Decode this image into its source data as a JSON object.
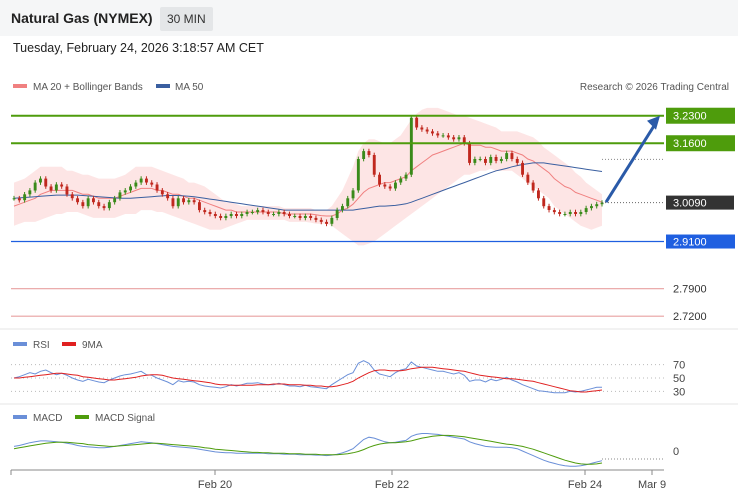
{
  "header": {
    "title": "Natural Gas (NYMEX)",
    "timeframe": "30 MIN"
  },
  "timestamp": "Tuesday, February 24, 2026 3:18:57 AM CET",
  "colors": {
    "resistance": "#4e9c0c",
    "support": "#1f5fe0",
    "current": "#333333",
    "target": "#e8a0a0",
    "ma20": "#f08080",
    "bollinger_fill": "#fde2e2",
    "ma50": "#3a5fa0",
    "candle_up": "#3a8a1a",
    "candle_down": "#c0281e",
    "rsi": "#6a8fd8",
    "rsi_ma": "#e02020",
    "macd": "#6a8fd8",
    "macd_signal": "#4e9c0c",
    "arrow": "#2a5aa8"
  },
  "chart_data": [
    {
      "type": "line",
      "name": "price",
      "legend": [
        "MA 20 + Bollinger Bands",
        "MA 50"
      ],
      "watermark": "Research © 2026 Trading Central",
      "x_ticks": [
        "Feb 20",
        "Feb 22",
        "Feb 24",
        "Mar 9"
      ],
      "ylim": [
        2.69,
        3.27
      ],
      "levels": [
        {
          "label": "3.2300",
          "value": 3.23,
          "kind": "resistance"
        },
        {
          "label": "3.1600",
          "value": 3.16,
          "kind": "resistance"
        },
        {
          "label": "3.0090",
          "value": 3.009,
          "kind": "current"
        },
        {
          "label": "2.9100",
          "value": 2.91,
          "kind": "support"
        },
        {
          "label": "2.7900",
          "value": 2.79,
          "kind": "target"
        },
        {
          "label": "2.7200",
          "value": 2.72,
          "kind": "target"
        }
      ],
      "close": [
        3.02,
        3.015,
        3.03,
        3.04,
        3.06,
        3.07,
        3.05,
        3.04,
        3.055,
        3.05,
        3.03,
        3.02,
        3.01,
        3.0,
        3.02,
        3.01,
        3.0,
        2.995,
        3.01,
        3.02,
        3.035,
        3.04,
        3.05,
        3.06,
        3.07,
        3.06,
        3.055,
        3.04,
        3.03,
        3.02,
        3.0,
        3.02,
        3.01,
        3.015,
        3.01,
        2.99,
        2.985,
        2.98,
        2.975,
        2.97,
        2.975,
        2.98,
        2.975,
        2.98,
        2.985,
        2.985,
        2.99,
        2.985,
        2.98,
        2.98,
        2.985,
        2.98,
        2.975,
        2.975,
        2.97,
        2.975,
        2.97,
        2.965,
        2.96,
        2.955,
        2.97,
        2.99,
        3.0,
        3.02,
        3.04,
        3.12,
        3.14,
        3.13,
        3.08,
        3.055,
        3.05,
        3.045,
        3.06,
        3.07,
        3.08,
        3.225,
        3.2,
        3.195,
        3.19,
        3.185,
        3.18,
        3.18,
        3.175,
        3.17,
        3.175,
        3.16,
        3.11,
        3.12,
        3.12,
        3.11,
        3.125,
        3.115,
        3.12,
        3.135,
        3.12,
        3.11,
        3.08,
        3.06,
        3.04,
        3.02,
        3.0,
        2.99,
        2.985,
        2.98,
        2.98,
        2.985,
        2.98,
        2.985,
        2.995,
        3.0,
        3.005,
        3.009
      ],
      "ma20": [
        3.0,
        3.005,
        3.01,
        3.015,
        3.02,
        3.03,
        3.035,
        3.04,
        3.04,
        3.04,
        3.04,
        3.04,
        3.035,
        3.03,
        3.03,
        3.025,
        3.02,
        3.02,
        3.02,
        3.02,
        3.025,
        3.03,
        3.035,
        3.04,
        3.045,
        3.045,
        3.045,
        3.04,
        3.04,
        3.035,
        3.03,
        3.03,
        3.025,
        3.02,
        3.02,
        3.015,
        3.01,
        3.005,
        3.0,
        2.995,
        2.99,
        2.99,
        2.985,
        2.985,
        2.985,
        2.985,
        2.985,
        2.985,
        2.985,
        2.985,
        2.985,
        2.98,
        2.98,
        2.98,
        2.98,
        2.98,
        2.98,
        2.978,
        2.976,
        2.975,
        2.975,
        2.98,
        2.99,
        2.995,
        3.005,
        3.02,
        3.035,
        3.045,
        3.05,
        3.055,
        3.06,
        3.06,
        3.065,
        3.07,
        3.075,
        3.09,
        3.1,
        3.11,
        3.12,
        3.13,
        3.135,
        3.14,
        3.145,
        3.15,
        3.155,
        3.16,
        3.155,
        3.155,
        3.155,
        3.15,
        3.15,
        3.145,
        3.14,
        3.14,
        3.14,
        3.135,
        3.13,
        3.12,
        3.115,
        3.105,
        3.095,
        3.085,
        3.07,
        3.06,
        3.05,
        3.045,
        3.035,
        3.03,
        3.025,
        3.02,
        3.015,
        3.01
      ],
      "upper": [
        3.06,
        3.065,
        3.07,
        3.08,
        3.09,
        3.1,
        3.1,
        3.1,
        3.1,
        3.1,
        3.09,
        3.09,
        3.085,
        3.08,
        3.08,
        3.075,
        3.07,
        3.07,
        3.07,
        3.07,
        3.075,
        3.08,
        3.09,
        3.1,
        3.1,
        3.1,
        3.1,
        3.095,
        3.09,
        3.085,
        3.08,
        3.075,
        3.07,
        3.06,
        3.06,
        3.055,
        3.05,
        3.04,
        3.03,
        3.02,
        3.01,
        3.01,
        3.005,
        3.0,
        3.0,
        3.0,
        3.0,
        3.0,
        3.0,
        3.0,
        3.0,
        2.995,
        2.995,
        2.995,
        2.995,
        2.995,
        2.995,
        2.99,
        2.99,
        2.99,
        3.0,
        3.02,
        3.04,
        3.07,
        3.1,
        3.14,
        3.16,
        3.17,
        3.17,
        3.165,
        3.16,
        3.16,
        3.17,
        3.18,
        3.2,
        3.22,
        3.235,
        3.245,
        3.25,
        3.25,
        3.25,
        3.245,
        3.24,
        3.235,
        3.23,
        3.23,
        3.225,
        3.22,
        3.215,
        3.21,
        3.205,
        3.2,
        3.19,
        3.19,
        3.19,
        3.19,
        3.185,
        3.18,
        3.175,
        3.165,
        3.15,
        3.14,
        3.13,
        3.12,
        3.11,
        3.1,
        3.085,
        3.075,
        3.06,
        3.05,
        3.04,
        3.03
      ],
      "lower": [
        2.95,
        2.955,
        2.96,
        2.96,
        2.96,
        2.965,
        2.97,
        2.975,
        2.98,
        2.98,
        2.985,
        2.985,
        2.985,
        2.98,
        2.975,
        2.97,
        2.97,
        2.97,
        2.97,
        2.97,
        2.975,
        2.98,
        2.98,
        2.98,
        2.99,
        2.99,
        2.99,
        2.985,
        2.985,
        2.98,
        2.975,
        2.97,
        2.965,
        2.96,
        2.955,
        2.95,
        2.945,
        2.94,
        2.94,
        2.94,
        2.945,
        2.95,
        2.955,
        2.96,
        2.965,
        2.965,
        2.965,
        2.965,
        2.965,
        2.965,
        2.965,
        2.965,
        2.96,
        2.96,
        2.96,
        2.96,
        2.958,
        2.955,
        2.955,
        2.955,
        2.95,
        2.94,
        2.93,
        2.92,
        2.91,
        2.9,
        2.9,
        2.905,
        2.91,
        2.92,
        2.93,
        2.94,
        2.95,
        2.96,
        2.97,
        2.98,
        2.99,
        3.0,
        3.01,
        3.02,
        3.03,
        3.04,
        3.05,
        3.06,
        3.07,
        3.08,
        3.08,
        3.085,
        3.09,
        3.09,
        3.095,
        3.09,
        3.09,
        3.09,
        3.09,
        3.08,
        3.07,
        3.06,
        3.05,
        3.04,
        3.03,
        3.02,
        3.0,
        2.99,
        2.98,
        2.97,
        2.96,
        2.95,
        2.945,
        2.94,
        2.945,
        2.95
      ],
      "ma50": [
        3.02,
        3.021,
        3.022,
        3.023,
        3.024,
        3.025,
        3.026,
        3.027,
        3.028,
        3.028,
        3.028,
        3.028,
        3.028,
        3.027,
        3.026,
        3.025,
        3.024,
        3.023,
        3.022,
        3.021,
        3.02,
        3.02,
        3.02,
        3.021,
        3.022,
        3.023,
        3.024,
        3.025,
        3.026,
        3.027,
        3.027,
        3.027,
        3.026,
        3.025,
        3.024,
        3.022,
        3.02,
        3.018,
        3.016,
        3.014,
        3.012,
        3.01,
        3.008,
        3.006,
        3.004,
        3.002,
        3.0,
        2.998,
        2.996,
        2.994,
        2.992,
        2.99,
        2.99,
        2.99,
        2.99,
        2.99,
        2.99,
        2.99,
        2.99,
        2.99,
        2.99,
        2.99,
        2.99,
        2.99,
        2.99,
        2.992,
        2.994,
        2.996,
        2.998,
        3.0,
        3.0,
        3.001,
        3.002,
        3.004,
        3.006,
        3.01,
        3.015,
        3.02,
        3.025,
        3.03,
        3.035,
        3.04,
        3.045,
        3.05,
        3.055,
        3.06,
        3.065,
        3.07,
        3.075,
        3.08,
        3.085,
        3.09,
        3.093,
        3.096,
        3.1,
        3.103,
        3.106,
        3.108,
        3.11,
        3.11,
        3.11,
        3.108,
        3.106,
        3.104,
        3.102,
        3.1,
        3.098,
        3.096,
        3.094,
        3.092,
        3.09,
        3.088
      ]
    },
    {
      "type": "line",
      "name": "rsi",
      "legend": [
        "RSI",
        "9MA"
      ],
      "y_ticks": [
        "70",
        "50",
        "30"
      ],
      "ylim": [
        20,
        80
      ],
      "rsi": [
        50,
        52,
        55,
        58,
        56,
        60,
        62,
        58,
        55,
        57,
        54,
        50,
        47,
        45,
        48,
        46,
        44,
        43,
        47,
        50,
        53,
        55,
        56,
        58,
        60,
        55,
        54,
        50,
        47,
        44,
        40,
        46,
        44,
        45,
        44,
        40,
        38,
        37,
        36,
        35,
        37,
        40,
        38,
        40,
        42,
        42,
        43,
        41,
        40,
        40,
        42,
        40,
        38,
        38,
        37,
        39,
        37,
        36,
        35,
        34,
        40,
        45,
        50,
        55,
        58,
        72,
        76,
        72,
        62,
        56,
        54,
        52,
        58,
        62,
        64,
        74,
        68,
        66,
        64,
        62,
        60,
        60,
        58,
        56,
        58,
        54,
        45,
        47,
        47,
        44,
        48,
        46,
        48,
        51,
        47,
        44,
        40,
        37,
        34,
        31,
        30,
        29,
        28,
        28,
        28,
        30,
        29,
        30,
        32,
        34,
        36,
        36
      ],
      "ma": [
        50,
        50,
        51,
        52,
        53,
        54,
        55,
        56,
        57,
        57,
        56,
        55,
        54,
        52,
        51,
        50,
        49,
        48,
        47,
        47,
        48,
        49,
        50,
        51,
        53,
        54,
        55,
        55,
        54,
        52,
        50,
        49,
        48,
        47,
        46,
        45,
        44,
        43,
        41,
        40,
        40,
        39,
        39,
        39,
        39,
        39,
        40,
        40,
        40,
        41,
        41,
        41,
        40,
        40,
        40,
        39,
        39,
        38,
        38,
        37,
        37,
        38,
        40,
        42,
        45,
        50,
        54,
        58,
        61,
        62,
        62,
        61,
        61,
        61,
        62,
        64,
        65,
        66,
        66,
        66,
        65,
        64,
        63,
        62,
        61,
        60,
        58,
        56,
        54,
        53,
        52,
        51,
        50,
        49,
        49,
        48,
        47,
        46,
        45,
        43,
        41,
        39,
        37,
        35,
        33,
        31,
        30,
        29,
        29,
        30,
        31,
        32
      ]
    },
    {
      "type": "line",
      "name": "macd",
      "legend": [
        "MACD",
        "MACD Signal"
      ],
      "y_ticks": [
        "0"
      ],
      "ylim": [
        -0.05,
        0.05
      ],
      "macd": [
        0.01,
        0.012,
        0.015,
        0.018,
        0.02,
        0.022,
        0.022,
        0.021,
        0.02,
        0.019,
        0.017,
        0.015,
        0.012,
        0.01,
        0.009,
        0.008,
        0.007,
        0.007,
        0.008,
        0.01,
        0.012,
        0.014,
        0.016,
        0.018,
        0.02,
        0.019,
        0.018,
        0.016,
        0.014,
        0.012,
        0.01,
        0.009,
        0.008,
        0.007,
        0.006,
        0.004,
        0.002,
        0.0,
        -0.002,
        -0.003,
        -0.004,
        -0.004,
        -0.005,
        -0.005,
        -0.005,
        -0.005,
        -0.005,
        -0.005,
        -0.006,
        -0.006,
        -0.006,
        -0.007,
        -0.007,
        -0.007,
        -0.008,
        -0.008,
        -0.008,
        -0.009,
        -0.009,
        -0.01,
        -0.009,
        -0.007,
        -0.004,
        0.0,
        0.005,
        0.015,
        0.025,
        0.03,
        0.028,
        0.024,
        0.02,
        0.018,
        0.019,
        0.021,
        0.023,
        0.032,
        0.036,
        0.038,
        0.038,
        0.037,
        0.036,
        0.034,
        0.032,
        0.03,
        0.028,
        0.026,
        0.02,
        0.016,
        0.013,
        0.01,
        0.009,
        0.008,
        0.008,
        0.008,
        0.007,
        0.005,
        0.0,
        -0.005,
        -0.01,
        -0.015,
        -0.02,
        -0.024,
        -0.027,
        -0.03,
        -0.032,
        -0.033,
        -0.033,
        -0.032,
        -0.03,
        -0.027,
        -0.024,
        -0.021
      ],
      "signal": [
        0.005,
        0.007,
        0.009,
        0.011,
        0.013,
        0.015,
        0.017,
        0.018,
        0.019,
        0.019,
        0.019,
        0.018,
        0.017,
        0.016,
        0.014,
        0.013,
        0.012,
        0.011,
        0.01,
        0.01,
        0.011,
        0.012,
        0.013,
        0.014,
        0.015,
        0.016,
        0.017,
        0.017,
        0.016,
        0.015,
        0.014,
        0.013,
        0.012,
        0.011,
        0.01,
        0.009,
        0.007,
        0.006,
        0.004,
        0.003,
        0.002,
        0.001,
        0.0,
        -0.001,
        -0.002,
        -0.003,
        -0.003,
        -0.004,
        -0.004,
        -0.005,
        -0.005,
        -0.005,
        -0.006,
        -0.006,
        -0.006,
        -0.007,
        -0.007,
        -0.007,
        -0.008,
        -0.008,
        -0.008,
        -0.008,
        -0.007,
        -0.006,
        -0.004,
        -0.001,
        0.003,
        0.008,
        0.012,
        0.015,
        0.017,
        0.018,
        0.018,
        0.019,
        0.02,
        0.022,
        0.025,
        0.028,
        0.03,
        0.032,
        0.033,
        0.034,
        0.034,
        0.033,
        0.032,
        0.031,
        0.029,
        0.027,
        0.025,
        0.023,
        0.021,
        0.019,
        0.017,
        0.015,
        0.014,
        0.012,
        0.01,
        0.007,
        0.004,
        0.0,
        -0.004,
        -0.008,
        -0.012,
        -0.016,
        -0.02,
        -0.023,
        -0.026,
        -0.028,
        -0.029,
        -0.029,
        -0.028,
        -0.026
      ]
    }
  ]
}
